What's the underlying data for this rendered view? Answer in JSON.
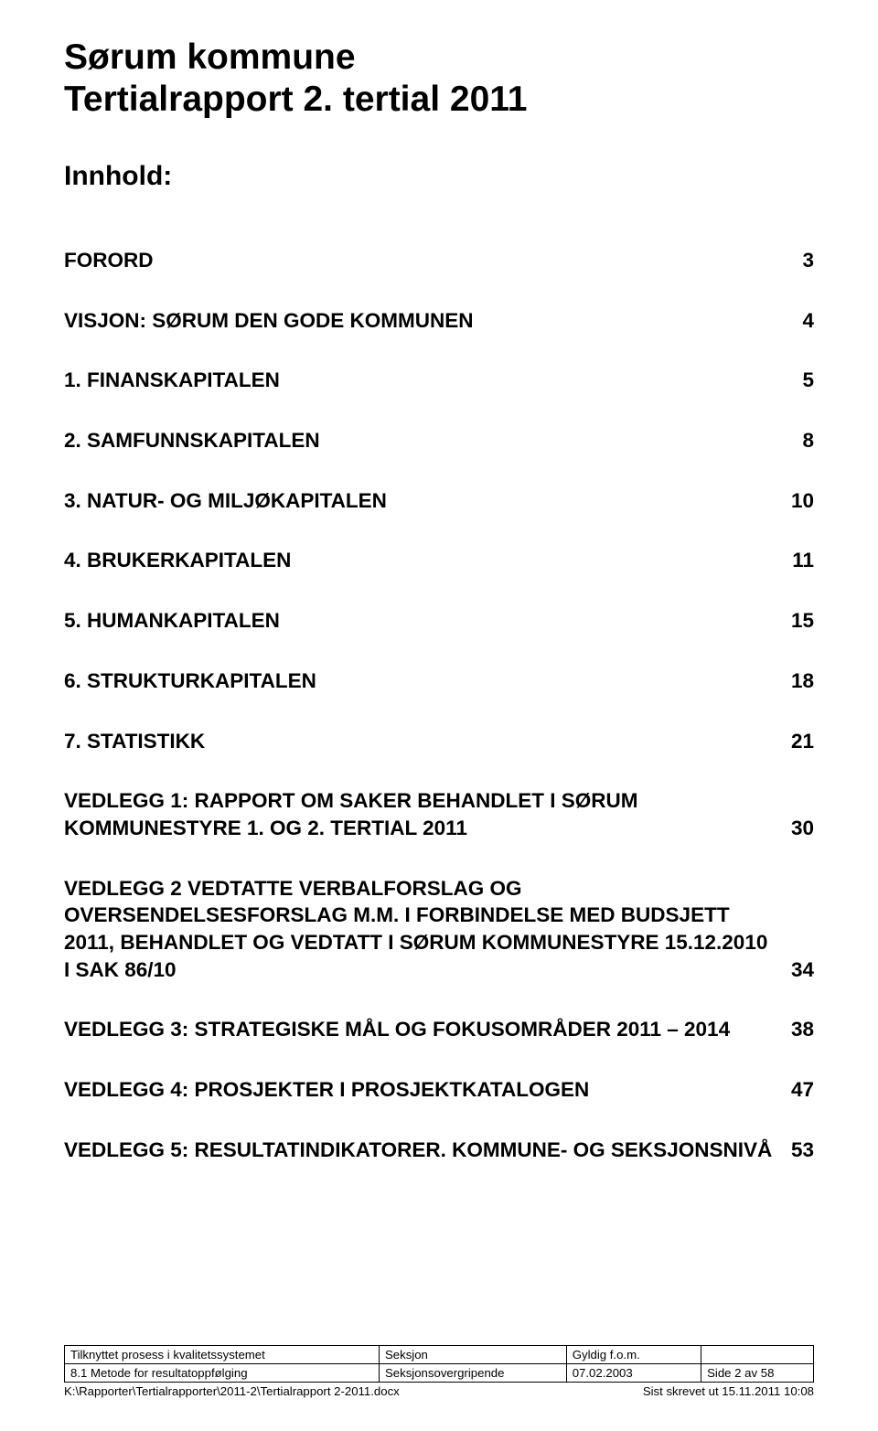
{
  "title": {
    "line1": "Sørum kommune",
    "line2": "Tertialrapport 2. tertial 2011"
  },
  "innhold_label": "Innhold:",
  "toc": [
    {
      "label": "FORORD",
      "page": "3"
    },
    {
      "label": "VISJON: SØRUM DEN GODE KOMMUNEN",
      "page": "4"
    },
    {
      "label": "1. FINANSKAPITALEN",
      "page": "5"
    },
    {
      "label": "2. SAMFUNNSKAPITALEN",
      "page": "8"
    },
    {
      "label": "3. NATUR- OG MILJØKAPITALEN",
      "page": "10"
    },
    {
      "label": "4. BRUKERKAPITALEN",
      "page": "11"
    },
    {
      "label": "5. HUMANKAPITALEN",
      "page": "15"
    },
    {
      "label": "6. STRUKTURKAPITALEN",
      "page": "18"
    },
    {
      "label": "7. STATISTIKK",
      "page": "21"
    },
    {
      "label": "VEDLEGG 1: RAPPORT OM SAKER BEHANDLET I SØRUM KOMMUNESTYRE 1. OG 2. TERTIAL 2011",
      "page": "30"
    },
    {
      "label": "VEDLEGG 2 VEDTATTE VERBALFORSLAG OG OVERSENDELSESFORSLAG M.M. I FORBINDELSE MED BUDSJETT 2011, BEHANDLET OG VEDTATT I SØRUM KOMMUNESTYRE 15.12.2010 I SAK 86/10",
      "page": "34"
    },
    {
      "label": "VEDLEGG 3: STRATEGISKE MÅL OG FOKUSOMRÅDER 2011 – 2014",
      "page": "38"
    },
    {
      "label": "VEDLEGG 4: PROSJEKTER I PROSJEKTKATALOGEN",
      "page": "47"
    },
    {
      "label": "VEDLEGG 5: RESULTATINDIKATORER. KOMMUNE- OG SEKSJONSNIVÅ",
      "page": "53"
    }
  ],
  "footer": {
    "row1": {
      "c1": "Tilknyttet prosess i kvalitetssystemet",
      "c2": "Seksjon",
      "c3": "Gyldig f.o.m.",
      "c4": ""
    },
    "row2": {
      "c1": "8.1 Metode for resultatoppfølging",
      "c2": "Seksjonsovergripende",
      "c3": "07.02.2003",
      "c4": "Side 2 av 58"
    },
    "bottom_left": "K:\\Rapporter\\Tertialrapporter\\2011-2\\Tertialrapport 2-2011.docx",
    "bottom_right": "Sist skrevet ut 15.11.2011 10:08"
  }
}
